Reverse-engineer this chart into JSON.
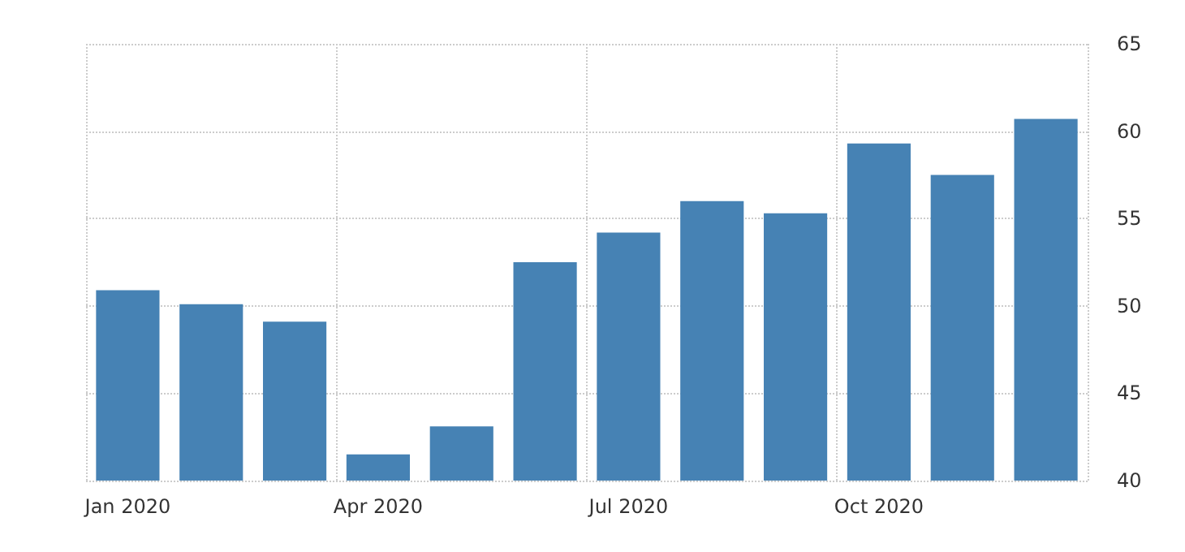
{
  "chart_data": {
    "type": "bar",
    "categories": [
      "Jan 2020",
      null,
      null,
      "Apr 2020",
      null,
      null,
      "Jul 2020",
      null,
      null,
      "Oct 2020",
      null,
      null
    ],
    "values": [
      50.9,
      50.1,
      49.1,
      41.5,
      43.1,
      52.5,
      54.2,
      56.0,
      55.3,
      59.3,
      57.5,
      60.7
    ],
    "color": "#4682b4",
    "ylim": [
      40,
      65
    ],
    "yticks": [
      40,
      45,
      50,
      55,
      60,
      65
    ],
    "grid": true
  }
}
